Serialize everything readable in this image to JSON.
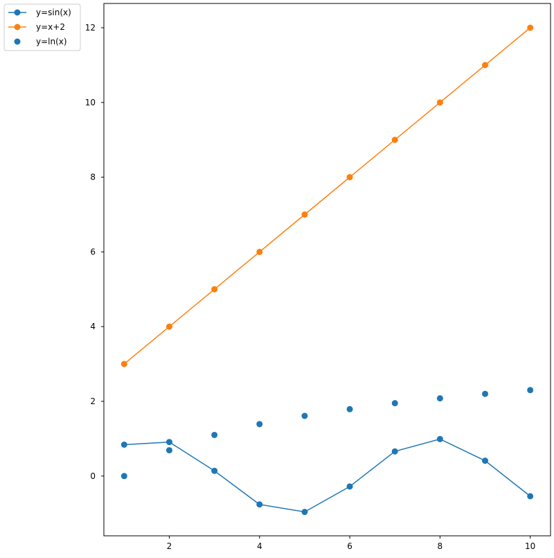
{
  "chart_data": {
    "type": "line",
    "title": "",
    "xlabel": "",
    "ylabel": "",
    "xlim": [
      0.55,
      10.45
    ],
    "ylim": [
      -1.6,
      12.65
    ],
    "xticks": [
      2,
      4,
      6,
      8,
      10
    ],
    "yticks": [
      0,
      2,
      4,
      6,
      8,
      10,
      12
    ],
    "xtick_labels": [
      "2",
      "4",
      "6",
      "8",
      "10"
    ],
    "ytick_labels": [
      "0",
      "2",
      "4",
      "6",
      "8",
      "10",
      "12"
    ],
    "grid": false,
    "legend_position": "outside-top-left",
    "x": [
      1,
      2,
      3,
      4,
      5,
      6,
      7,
      8,
      9,
      10
    ],
    "series": [
      {
        "name": "y=sin(x)",
        "kind": "line-markers",
        "color": "#1f77b4",
        "values": [
          0.84,
          0.91,
          0.14,
          -0.76,
          -0.96,
          -0.28,
          0.66,
          0.99,
          0.41,
          -0.54
        ]
      },
      {
        "name": "y=x+2",
        "kind": "line-markers",
        "color": "#ff7f0e",
        "values": [
          3,
          4,
          5,
          6,
          7,
          8,
          9,
          10,
          11,
          12
        ]
      },
      {
        "name": "y=ln(x)",
        "kind": "scatter",
        "color": "#1f77b4",
        "values": [
          0.0,
          0.69,
          1.1,
          1.39,
          1.61,
          1.79,
          1.95,
          2.08,
          2.2,
          2.3
        ]
      }
    ]
  }
}
